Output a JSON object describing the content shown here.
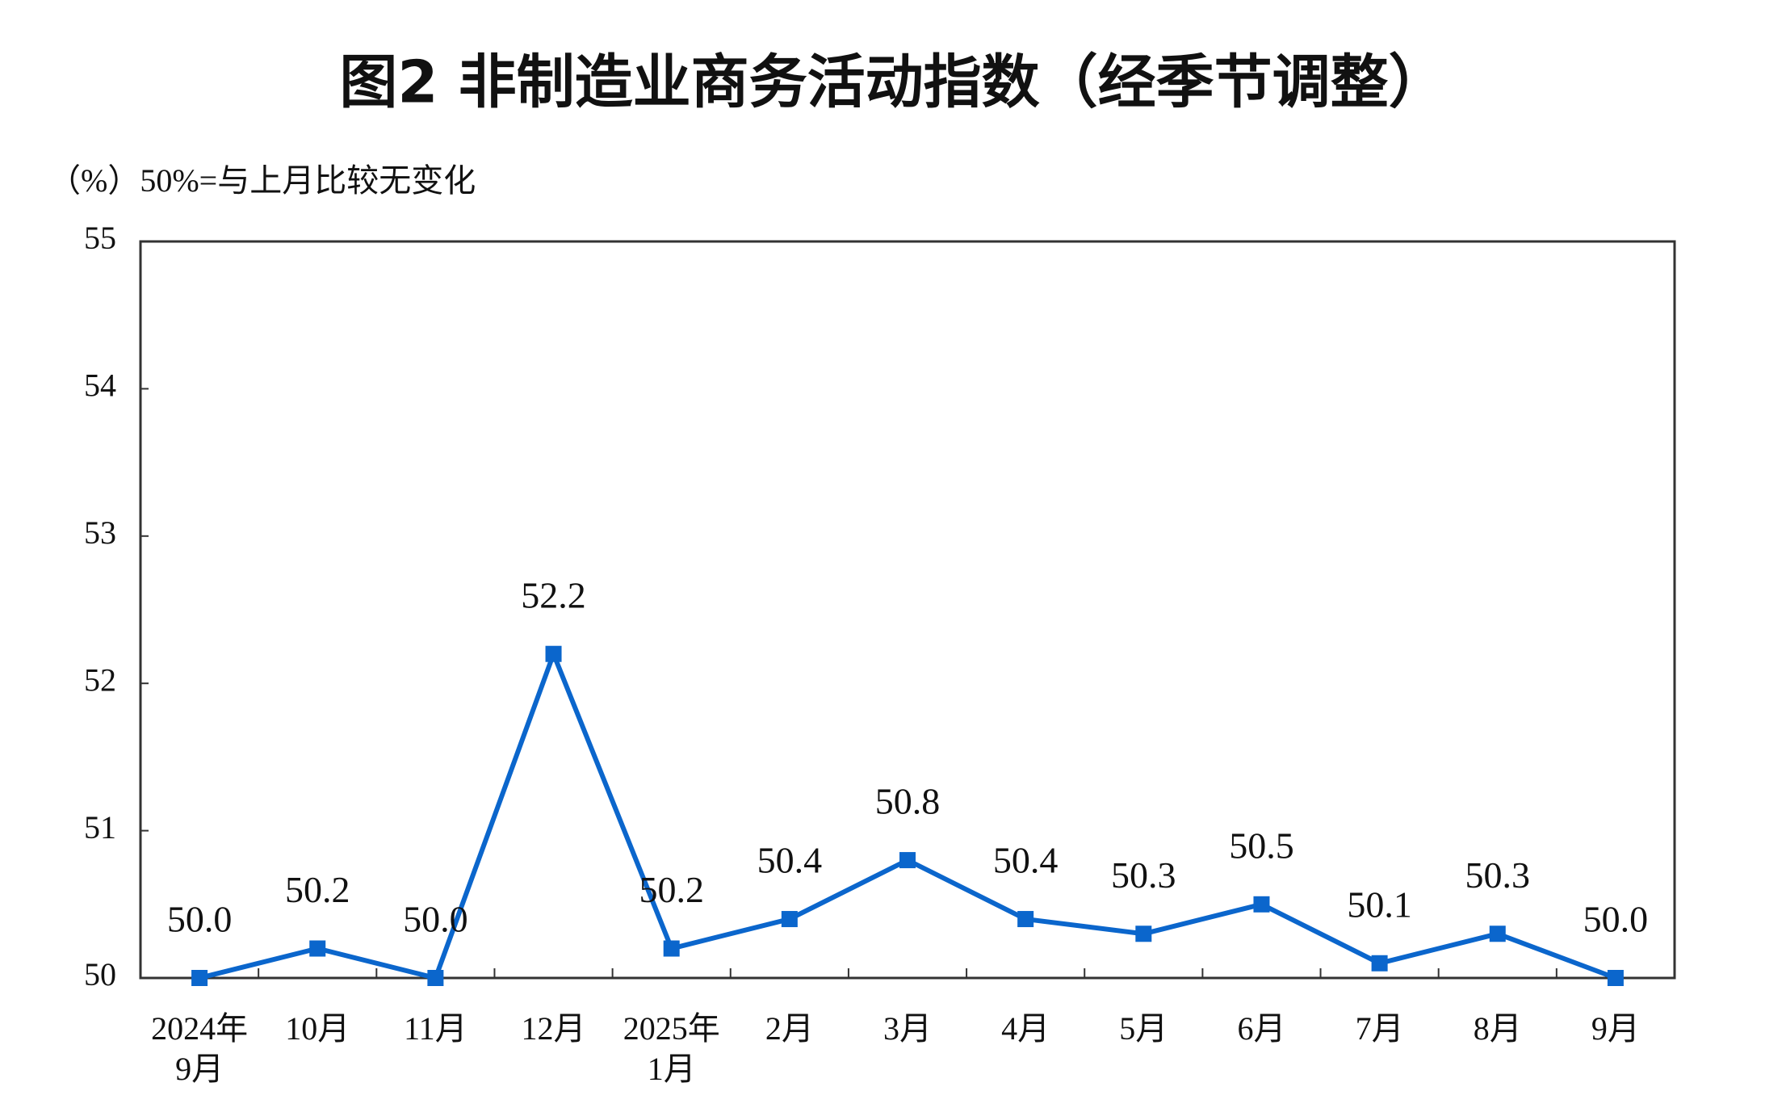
{
  "chart_data": {
    "type": "line",
    "title": "图2  非制造业商务活动指数（经季节调整）",
    "y_axis_note": "（%）50%=与上月比较无变化",
    "categories": [
      [
        "2024年",
        "9月"
      ],
      [
        "10月"
      ],
      [
        "11月"
      ],
      [
        "12月"
      ],
      [
        "2025年",
        "1月"
      ],
      [
        "2月"
      ],
      [
        "3月"
      ],
      [
        "4月"
      ],
      [
        "5月"
      ],
      [
        "6月"
      ],
      [
        "7月"
      ],
      [
        "8月"
      ],
      [
        "9月"
      ]
    ],
    "values": [
      50.0,
      50.2,
      50.0,
      52.2,
      50.2,
      50.4,
      50.8,
      50.4,
      50.3,
      50.5,
      50.1,
      50.3,
      50.0
    ],
    "value_labels": [
      "50.0",
      "50.2",
      "50.0",
      "52.2",
      "50.2",
      "50.4",
      "50.8",
      "50.4",
      "50.3",
      "50.5",
      "50.1",
      "50.3",
      "50.0"
    ],
    "color": "#0b66cc",
    "ylim": [
      50,
      55
    ],
    "yticks": [
      50,
      51,
      52,
      53,
      54,
      55
    ]
  }
}
